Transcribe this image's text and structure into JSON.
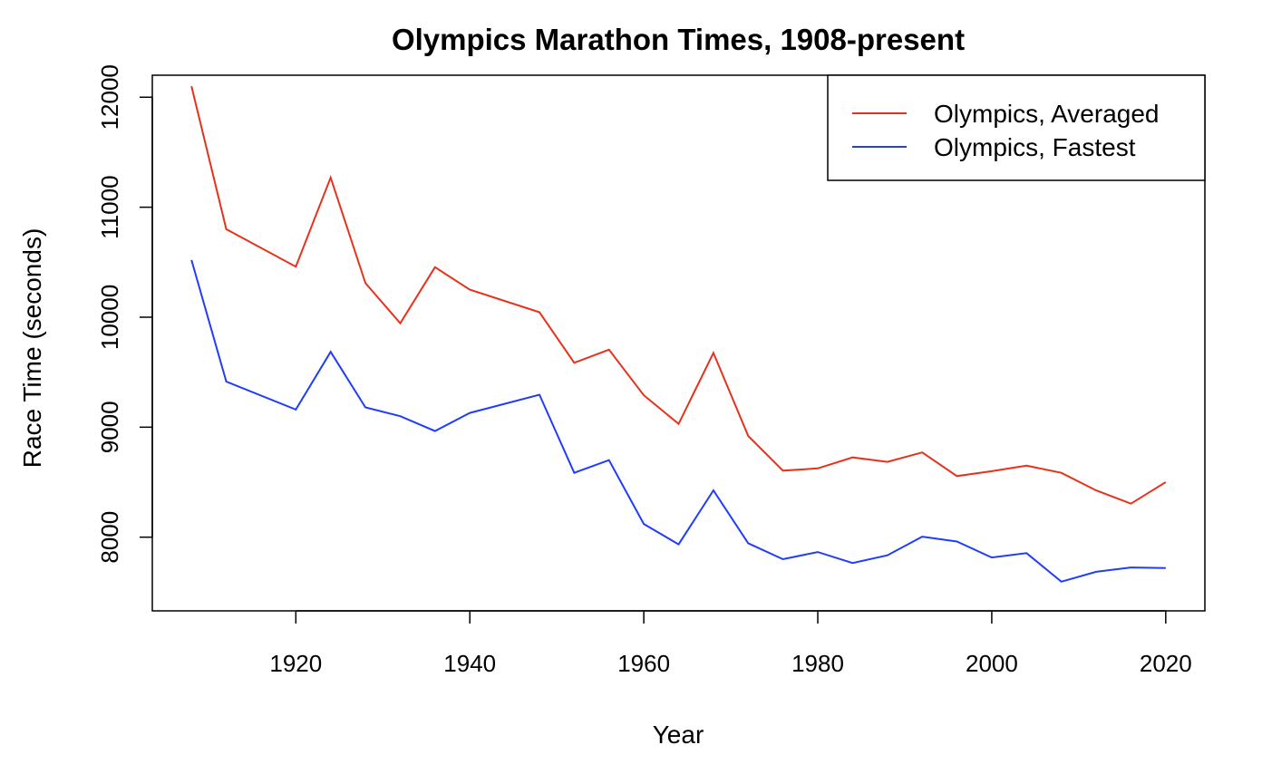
{
  "chart_data": {
    "type": "line",
    "title": "Olympics Marathon Times, 1908-present",
    "xlabel": "Year",
    "ylabel": "Race Time (seconds)",
    "xlim": [
      1903.5,
      2024.5
    ],
    "ylim": [
      7330,
      12200
    ],
    "xticks": [
      1920,
      1940,
      1960,
      1980,
      2000,
      2020
    ],
    "yticks": [
      8000,
      9000,
      10000,
      11000,
      12000
    ],
    "grid": false,
    "legend_position": "top-right",
    "x": [
      1908,
      1912,
      1920,
      1924,
      1928,
      1932,
      1936,
      1940,
      1948,
      1952,
      1956,
      1960,
      1964,
      1968,
      1972,
      1976,
      1980,
      1984,
      1988,
      1992,
      1996,
      2000,
      2004,
      2008,
      2012,
      2016,
      2020
    ],
    "series": [
      {
        "name": "Olympics, Averaged",
        "color": "#e8311a",
        "values": [
          12100,
          10800,
          10460,
          11270,
          10310,
          9945,
          10455,
          10250,
          10045,
          9585,
          9705,
          9290,
          9030,
          9675,
          8920,
          8605,
          8625,
          8725,
          8685,
          8770,
          8555,
          8600,
          8650,
          8585,
          8425,
          8305,
          8500
        ]
      },
      {
        "name": "Olympics, Fastest",
        "color": "#1f3dfa",
        "values": [
          10520,
          9415,
          9160,
          9685,
          9180,
          9100,
          8965,
          9130,
          9295,
          8585,
          8700,
          8120,
          7935,
          8425,
          7945,
          7800,
          7865,
          7765,
          7835,
          8005,
          7960,
          7815,
          7855,
          7595,
          7685,
          7725,
          7720
        ]
      }
    ]
  }
}
